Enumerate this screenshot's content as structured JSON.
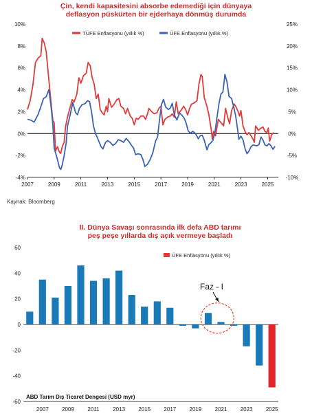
{
  "chart_data": [
    {
      "type": "line",
      "title": "Çin, kendi kapasitesini absorbe edemediği için dünyaya deflasyon püskürten bir ejderhaya dönmüş durumda",
      "title_lines": [
        "Çin, kendi kapasitesini absorbe edemediği için dünyaya",
        "deflasyon püskürten bir ejderhaya dönmüş durumda"
      ],
      "source": "Kaynak: Bloomberg",
      "legend_position": "top",
      "grid": false,
      "x_ticks": [
        "2007",
        "2009",
        "2011",
        "2013",
        "2015",
        "2017",
        "2019",
        "2021",
        "2023",
        "2025"
      ],
      "xlim": [
        2007,
        2025.8
      ],
      "left_axis": {
        "ticks": [
          "10%",
          "8%",
          "6%",
          "4%",
          "2%",
          "0%",
          "-2%",
          "-4%"
        ],
        "ylim": [
          -4,
          10
        ]
      },
      "right_axis": {
        "ticks": [
          "25%",
          "20%",
          "15%",
          "10%",
          "5%",
          "0%",
          "-5%",
          "-10%"
        ],
        "ylim": [
          -10,
          25
        ]
      },
      "series": [
        {
          "name": "TÜFE Enflasyonu (yıllık %)",
          "color": "#e03a3a",
          "axis": "left",
          "points": [
            [
              2007.0,
              2.2
            ],
            [
              2007.2,
              3.0
            ],
            [
              2007.4,
              4.4
            ],
            [
              2007.6,
              6.5
            ],
            [
              2007.8,
              6.9
            ],
            [
              2008.0,
              7.1
            ],
            [
              2008.1,
              8.7
            ],
            [
              2008.25,
              8.3
            ],
            [
              2008.4,
              7.5
            ],
            [
              2008.6,
              4.9
            ],
            [
              2008.8,
              2.4
            ],
            [
              2008.9,
              1.2
            ],
            [
              2009.0,
              1.0
            ],
            [
              2009.1,
              -1.6
            ],
            [
              2009.25,
              -1.2
            ],
            [
              2009.4,
              -1.7
            ],
            [
              2009.5,
              -1.8
            ],
            [
              2009.6,
              -1.2
            ],
            [
              2009.75,
              -0.8
            ],
            [
              2009.85,
              0.6
            ],
            [
              2010.0,
              1.5
            ],
            [
              2010.2,
              2.4
            ],
            [
              2010.35,
              3.1
            ],
            [
              2010.5,
              2.9
            ],
            [
              2010.7,
              3.6
            ],
            [
              2010.85,
              5.1
            ],
            [
              2011.0,
              4.6
            ],
            [
              2011.2,
              5.3
            ],
            [
              2011.4,
              5.5
            ],
            [
              2011.55,
              6.5
            ],
            [
              2011.7,
              6.2
            ],
            [
              2011.85,
              5.1
            ],
            [
              2012.0,
              4.5
            ],
            [
              2012.15,
              3.2
            ],
            [
              2012.3,
              3.6
            ],
            [
              2012.45,
              2.2
            ],
            [
              2012.6,
              1.9
            ],
            [
              2012.75,
              1.7
            ],
            [
              2012.9,
              2.5
            ],
            [
              2013.0,
              2.0
            ],
            [
              2013.1,
              3.2
            ],
            [
              2013.3,
              2.4
            ],
            [
              2013.5,
              2.7
            ],
            [
              2013.7,
              3.1
            ],
            [
              2013.85,
              3.2
            ],
            [
              2014.0,
              2.5
            ],
            [
              2014.2,
              2.3
            ],
            [
              2014.35,
              1.8
            ],
            [
              2014.5,
              2.3
            ],
            [
              2014.7,
              1.6
            ],
            [
              2014.85,
              1.4
            ],
            [
              2015.0,
              0.8
            ],
            [
              2015.15,
              1.4
            ],
            [
              2015.3,
              1.3
            ],
            [
              2015.5,
              1.6
            ],
            [
              2015.7,
              1.6
            ],
            [
              2015.85,
              1.3
            ],
            [
              2016.0,
              1.8
            ],
            [
              2016.1,
              2.3
            ],
            [
              2016.3,
              2.0
            ],
            [
              2016.5,
              1.8
            ],
            [
              2016.7,
              1.9
            ],
            [
              2016.85,
              2.3
            ],
            [
              2017.0,
              2.5
            ],
            [
              2017.15,
              0.8
            ],
            [
              2017.3,
              1.3
            ],
            [
              2017.5,
              1.5
            ],
            [
              2017.7,
              1.6
            ],
            [
              2017.85,
              1.8
            ],
            [
              2018.0,
              1.5
            ],
            [
              2018.15,
              2.9
            ],
            [
              2018.3,
              1.8
            ],
            [
              2018.5,
              2.1
            ],
            [
              2018.7,
              2.5
            ],
            [
              2018.85,
              2.2
            ],
            [
              2019.0,
              1.7
            ],
            [
              2019.15,
              2.3
            ],
            [
              2019.3,
              2.7
            ],
            [
              2019.5,
              2.8
            ],
            [
              2019.7,
              3.0
            ],
            [
              2019.85,
              4.5
            ],
            [
              2020.0,
              5.4
            ],
            [
              2020.1,
              5.2
            ],
            [
              2020.25,
              3.3
            ],
            [
              2020.45,
              2.5
            ],
            [
              2020.6,
              1.7
            ],
            [
              2020.75,
              0.5
            ],
            [
              2020.85,
              -0.5
            ],
            [
              2020.95,
              0.2
            ],
            [
              2021.1,
              -0.2
            ],
            [
              2021.3,
              1.3
            ],
            [
              2021.5,
              1.0
            ],
            [
              2021.7,
              0.7
            ],
            [
              2021.85,
              2.3
            ],
            [
              2022.0,
              1.5
            ],
            [
              2022.15,
              0.9
            ],
            [
              2022.3,
              2.1
            ],
            [
              2022.5,
              2.7
            ],
            [
              2022.6,
              2.5
            ],
            [
              2022.75,
              2.1
            ],
            [
              2022.9,
              1.6
            ],
            [
              2023.0,
              2.1
            ],
            [
              2023.15,
              0.7
            ],
            [
              2023.3,
              0.2
            ],
            [
              2023.45,
              -0.1
            ],
            [
              2023.6,
              0.1
            ],
            [
              2023.75,
              -0.2
            ],
            [
              2023.9,
              -0.5
            ],
            [
              2024.0,
              -0.8
            ],
            [
              2024.1,
              0.7
            ],
            [
              2024.3,
              0.3
            ],
            [
              2024.5,
              0.5
            ],
            [
              2024.65,
              0.6
            ],
            [
              2024.8,
              0.2
            ],
            [
              2024.95,
              0.1
            ],
            [
              2025.05,
              0.5
            ],
            [
              2025.15,
              -0.7
            ],
            [
              2025.3,
              -0.1
            ],
            [
              2025.45,
              0.1
            ]
          ]
        },
        {
          "name": "ÜFE Enflasyonu (yıllık %)",
          "color": "#3b62b3",
          "axis": "right",
          "points": [
            [
              2007.0,
              3.3
            ],
            [
              2007.3,
              3.0
            ],
            [
              2007.5,
              2.6
            ],
            [
              2007.8,
              4.4
            ],
            [
              2008.0,
              6.1
            ],
            [
              2008.2,
              8.0
            ],
            [
              2008.4,
              8.4
            ],
            [
              2008.6,
              10.0
            ],
            [
              2008.75,
              6.6
            ],
            [
              2008.9,
              2.0
            ],
            [
              2009.0,
              -3.3
            ],
            [
              2009.2,
              -5.4
            ],
            [
              2009.4,
              -7.8
            ],
            [
              2009.5,
              -8.2
            ],
            [
              2009.6,
              -7.2
            ],
            [
              2009.75,
              -5.0
            ],
            [
              2009.9,
              -2.1
            ],
            [
              2010.0,
              1.7
            ],
            [
              2010.2,
              4.3
            ],
            [
              2010.4,
              7.1
            ],
            [
              2010.6,
              4.8
            ],
            [
              2010.75,
              4.3
            ],
            [
              2010.9,
              5.8
            ],
            [
              2011.1,
              6.6
            ],
            [
              2011.3,
              6.8
            ],
            [
              2011.5,
              7.5
            ],
            [
              2011.65,
              7.3
            ],
            [
              2011.8,
              5.0
            ],
            [
              2011.95,
              1.7
            ],
            [
              2012.1,
              0.0
            ],
            [
              2012.3,
              -1.4
            ],
            [
              2012.5,
              -2.9
            ],
            [
              2012.65,
              -3.5
            ],
            [
              2012.85,
              -2.0
            ],
            [
              2013.0,
              -1.6
            ],
            [
              2013.2,
              -2.0
            ],
            [
              2013.4,
              -2.7
            ],
            [
              2013.6,
              -2.3
            ],
            [
              2013.8,
              -1.4
            ],
            [
              2014.0,
              -1.6
            ],
            [
              2014.2,
              -2.0
            ],
            [
              2014.4,
              -1.1
            ],
            [
              2014.6,
              -1.8
            ],
            [
              2014.8,
              -2.7
            ],
            [
              2014.95,
              -3.3
            ],
            [
              2015.1,
              -4.8
            ],
            [
              2015.3,
              -4.6
            ],
            [
              2015.5,
              -4.8
            ],
            [
              2015.65,
              -5.9
            ],
            [
              2015.8,
              -7.5
            ],
            [
              2016.0,
              -7.0
            ],
            [
              2016.2,
              -5.9
            ],
            [
              2016.4,
              -4.3
            ],
            [
              2016.6,
              -1.7
            ],
            [
              2016.75,
              -0.8
            ],
            [
              2016.9,
              3.3
            ],
            [
              2017.05,
              6.7
            ],
            [
              2017.2,
              7.8
            ],
            [
              2017.35,
              6.1
            ],
            [
              2017.55,
              5.5
            ],
            [
              2017.7,
              5.8
            ],
            [
              2017.85,
              6.9
            ],
            [
              2018.0,
              4.3
            ],
            [
              2018.2,
              3.1
            ],
            [
              2018.4,
              4.7
            ],
            [
              2018.6,
              4.1
            ],
            [
              2018.75,
              3.5
            ],
            [
              2018.9,
              2.3
            ],
            [
              2019.05,
              0.6
            ],
            [
              2019.2,
              0.1
            ],
            [
              2019.4,
              0.5
            ],
            [
              2019.6,
              0.0
            ],
            [
              2019.8,
              -1.2
            ],
            [
              2019.95,
              -0.5
            ],
            [
              2020.1,
              -0.4
            ],
            [
              2020.25,
              -1.5
            ],
            [
              2020.45,
              -3.7
            ],
            [
              2020.6,
              -2.5
            ],
            [
              2020.75,
              -2.1
            ],
            [
              2020.9,
              -1.5
            ],
            [
              2021.05,
              0.3
            ],
            [
              2021.2,
              3.7
            ],
            [
              2021.35,
              6.8
            ],
            [
              2021.5,
              9.0
            ],
            [
              2021.65,
              9.5
            ],
            [
              2021.8,
              13.5
            ],
            [
              2021.95,
              11.8
            ],
            [
              2022.1,
              8.5
            ],
            [
              2022.3,
              8.0
            ],
            [
              2022.45,
              6.1
            ],
            [
              2022.6,
              4.1
            ],
            [
              2022.75,
              0.9
            ],
            [
              2022.85,
              -1.3
            ],
            [
              2023.0,
              -0.6
            ],
            [
              2023.15,
              -1.4
            ],
            [
              2023.3,
              -3.4
            ],
            [
              2023.45,
              -4.6
            ],
            [
              2023.6,
              -4.0
            ],
            [
              2023.75,
              -3.0
            ],
            [
              2023.9,
              -2.6
            ],
            [
              2024.05,
              -2.7
            ],
            [
              2024.2,
              -2.8
            ],
            [
              2024.35,
              -2.5
            ],
            [
              2024.5,
              -0.8
            ],
            [
              2024.65,
              -1.5
            ],
            [
              2024.8,
              -2.6
            ],
            [
              2024.95,
              -2.8
            ],
            [
              2025.1,
              -2.3
            ],
            [
              2025.25,
              -2.8
            ],
            [
              2025.4,
              -3.6
            ],
            [
              2025.55,
              -2.9
            ]
          ]
        }
      ]
    },
    {
      "type": "bar",
      "title": "II. Dünya Savaşı sonrasında ilk defa ABD tarımı peş peşe yıllarda dış açık vermeye başladı",
      "title_lines": [
        "II. Dünya Savaşı sonrasında ilk defa ABD tarımı",
        "peş peşe yıllarda dış açık vermeye başladı"
      ],
      "legend_position": "top-right",
      "legend": "ÜFE Enflasyonu (yıllık %)",
      "legend_color": "#e03a3a",
      "bottom_label": "ABD Tarım Dış Ticaret Dengesi (USD myr)",
      "annotation": "Faz - I",
      "highlight_years": [
        2020,
        2021
      ],
      "grid": false,
      "x_ticks": [
        "2007",
        "2009",
        "2011",
        "2013",
        "2015",
        "2017",
        "2019",
        "2021",
        "2023",
        "2025"
      ],
      "y_ticks": [
        "60",
        "40",
        "20",
        "0",
        "-20",
        "-40",
        "-60"
      ],
      "ylim": [
        -60,
        60
      ],
      "bar_color": "#1a7ab8",
      "highlight_bar_color": "#e0262c",
      "categories": [
        2006,
        2007,
        2008,
        2009,
        2010,
        2011,
        2012,
        2013,
        2014,
        2015,
        2016,
        2017,
        2018,
        2019,
        2020,
        2021,
        2022,
        2023,
        2024,
        2025
      ],
      "values": [
        10,
        35,
        21,
        30,
        46,
        34,
        36,
        42,
        23,
        14,
        18,
        13,
        -1,
        -3,
        9,
        2,
        -1,
        -17,
        -32,
        -49
      ],
      "highlight_index": 19
    }
  ]
}
